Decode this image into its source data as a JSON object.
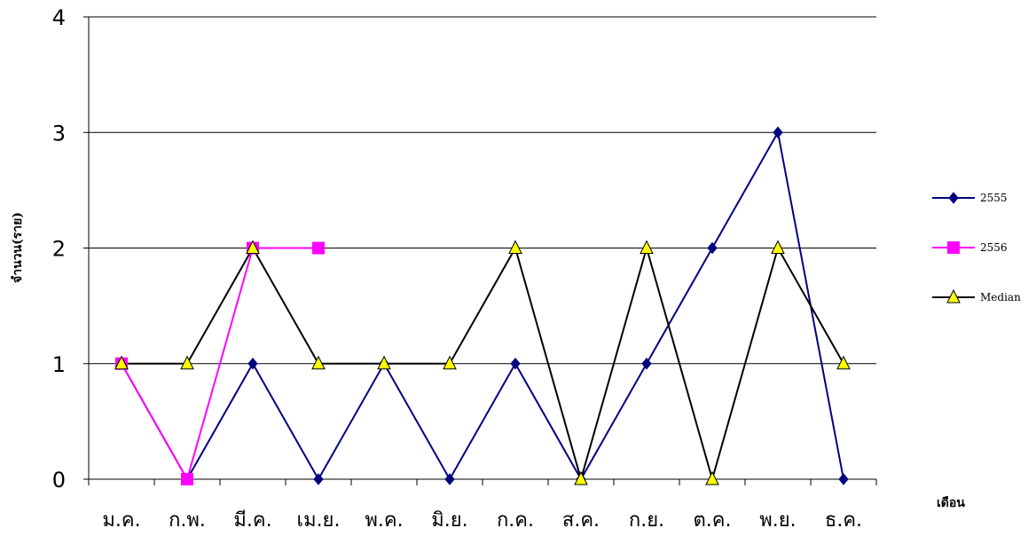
{
  "chart_data": {
    "type": "line",
    "title": "",
    "xlabel": "เดือน",
    "ylabel": "จำนวน(ราย)",
    "categories": [
      "ม.ค.",
      "ก.พ.",
      "มี.ค.",
      "เม.ย.",
      "พ.ค.",
      "มิ.ย.",
      "ก.ค.",
      "ส.ค.",
      "ก.ย.",
      "ต.ค.",
      "พ.ย.",
      "ธ.ค."
    ],
    "yticks": [
      "0",
      "1",
      "2",
      "3",
      "4"
    ],
    "ylim": [
      0,
      4
    ],
    "grid": true,
    "legend_position": "right",
    "series": [
      {
        "name": "2555",
        "color": "#000080",
        "marker": "diamond",
        "values": [
          1,
          0,
          1,
          0,
          1,
          0,
          1,
          0,
          1,
          2,
          3,
          0
        ]
      },
      {
        "name": "2556",
        "color": "#ff00ff",
        "marker": "square",
        "values": [
          1,
          0,
          2,
          2,
          null,
          null,
          null,
          null,
          null,
          null,
          null,
          null
        ]
      },
      {
        "name": "Median",
        "color": "#000000",
        "marker": "triangle",
        "marker_fill": "#ffff00",
        "values": [
          1,
          1,
          2,
          1,
          1,
          1,
          2,
          0,
          2,
          0,
          2,
          1
        ]
      }
    ]
  }
}
